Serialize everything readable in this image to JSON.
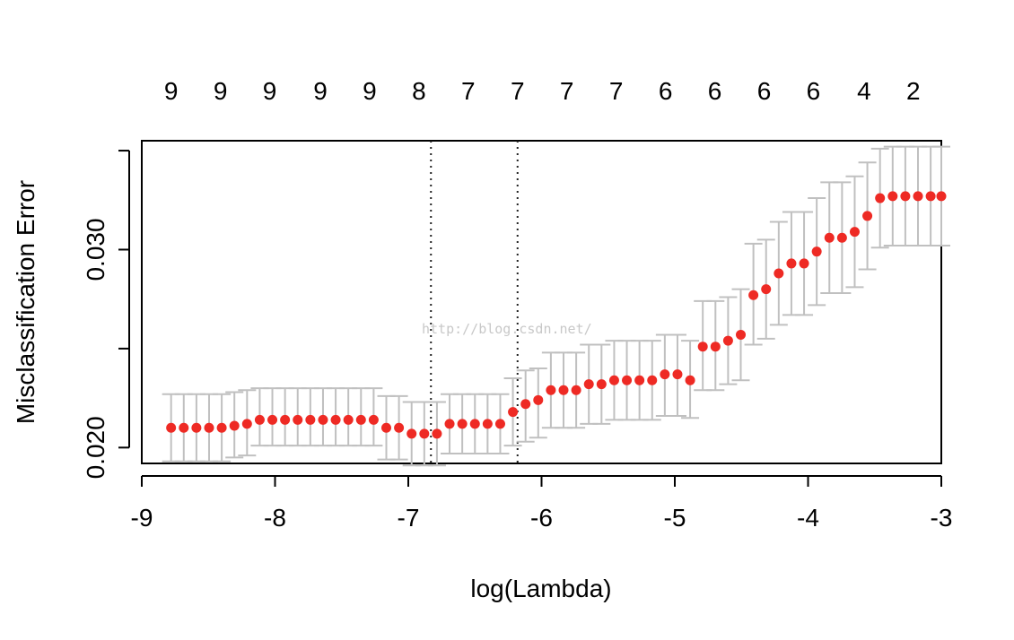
{
  "watermark": "http://blog.csdn.net/",
  "chart_data": {
    "type": "scatter",
    "title": "",
    "xlabel": "log(Lambda)",
    "ylabel": "Misclassification Error",
    "xlim": [
      -9,
      -3
    ],
    "ylim": [
      0.0192,
      0.0355
    ],
    "x_ticks": [
      -9,
      -8,
      -7,
      -6,
      -5,
      -4,
      -3
    ],
    "x_tick_labels": [
      "-9",
      "-8",
      "-7",
      "-6",
      "-5",
      "-4",
      "-3"
    ],
    "y_ticks": [
      0.02,
      0.025,
      0.03,
      0.035
    ],
    "y_tick_labels": [
      "0.020",
      "",
      "0.030",
      ""
    ],
    "top_axis": {
      "positions": [
        -8.78,
        -8.41,
        -8.04,
        -7.66,
        -7.29,
        -6.92,
        -6.55,
        -6.18,
        -5.81,
        -5.44,
        -5.07,
        -4.7,
        -4.33,
        -3.96,
        -3.58,
        -3.21
      ],
      "labels": [
        "9",
        "9",
        "9",
        "9",
        "9",
        "8",
        "7",
        "7",
        "7",
        "7",
        "6",
        "6",
        "6",
        "6",
        "4",
        "2"
      ]
    },
    "vlines": [
      -6.83,
      -6.18
    ],
    "point_color": "#ee2a24",
    "errorbar_color": "#c0c0c0",
    "series": [
      {
        "x": [
          -8.78,
          -8.685,
          -8.59,
          -8.495,
          -8.4,
          -8.305,
          -8.21,
          -8.115,
          -8.02,
          -7.925,
          -7.83,
          -7.735,
          -7.64,
          -7.545,
          -7.45,
          -7.355,
          -7.26,
          -7.165,
          -7.07,
          -6.975,
          -6.88,
          -6.785,
          -6.69,
          -6.595,
          -6.5,
          -6.405,
          -6.31,
          -6.215,
          -6.12,
          -6.025,
          -5.93,
          -5.835,
          -5.74,
          -5.645,
          -5.55,
          -5.455,
          -5.36,
          -5.265,
          -5.17,
          -5.075,
          -4.98,
          -4.885,
          -4.79,
          -4.695,
          -4.6,
          -4.505,
          -4.41,
          -4.315,
          -4.22,
          -4.125,
          -4.03,
          -3.935,
          -3.84,
          -3.745,
          -3.65,
          -3.555,
          -3.46,
          -3.365,
          -3.27,
          -3.175,
          -3.08,
          -3.0
        ],
        "y": [
          0.021,
          0.021,
          0.021,
          0.021,
          0.021,
          0.0211,
          0.0212,
          0.0214,
          0.0214,
          0.0214,
          0.0214,
          0.0214,
          0.0214,
          0.0214,
          0.0214,
          0.0214,
          0.0214,
          0.021,
          0.021,
          0.0207,
          0.0207,
          0.0207,
          0.0212,
          0.0212,
          0.0212,
          0.0212,
          0.0212,
          0.0218,
          0.0222,
          0.0224,
          0.0229,
          0.0229,
          0.0229,
          0.0232,
          0.0232,
          0.0234,
          0.0234,
          0.0234,
          0.0234,
          0.0237,
          0.0237,
          0.0234,
          0.0251,
          0.0251,
          0.0254,
          0.0257,
          0.0277,
          0.028,
          0.0288,
          0.0293,
          0.0293,
          0.0299,
          0.0306,
          0.0306,
          0.0309,
          0.0317,
          0.0326,
          0.0327,
          0.0327,
          0.0327,
          0.0327,
          0.0327
        ],
        "lower": [
          0.0193,
          0.0193,
          0.0193,
          0.0193,
          0.0193,
          0.0195,
          0.0196,
          0.0201,
          0.0201,
          0.0201,
          0.0201,
          0.0201,
          0.0201,
          0.0201,
          0.0201,
          0.0201,
          0.0201,
          0.0194,
          0.0194,
          0.0191,
          0.0191,
          0.0191,
          0.0197,
          0.0197,
          0.0197,
          0.0197,
          0.0197,
          0.0201,
          0.0203,
          0.0205,
          0.021,
          0.021,
          0.021,
          0.0212,
          0.0212,
          0.0214,
          0.0214,
          0.0214,
          0.0214,
          0.0216,
          0.0216,
          0.0215,
          0.0229,
          0.0229,
          0.0232,
          0.0234,
          0.0252,
          0.0255,
          0.0262,
          0.0267,
          0.0267,
          0.0272,
          0.0278,
          0.0278,
          0.0281,
          0.029,
          0.0301,
          0.0302,
          0.0302,
          0.0302,
          0.0302,
          0.0302
        ],
        "upper": [
          0.0227,
          0.0227,
          0.0227,
          0.0227,
          0.0227,
          0.0228,
          0.0229,
          0.023,
          0.023,
          0.023,
          0.023,
          0.023,
          0.023,
          0.023,
          0.023,
          0.023,
          0.023,
          0.0226,
          0.0226,
          0.0223,
          0.0223,
          0.0223,
          0.0227,
          0.0227,
          0.0227,
          0.0227,
          0.0227,
          0.0235,
          0.0239,
          0.024,
          0.0248,
          0.0248,
          0.0248,
          0.0252,
          0.0252,
          0.0254,
          0.0254,
          0.0254,
          0.0254,
          0.0257,
          0.0257,
          0.0254,
          0.0274,
          0.0274,
          0.0276,
          0.028,
          0.0303,
          0.0305,
          0.0314,
          0.0319,
          0.0319,
          0.0326,
          0.0334,
          0.0334,
          0.0337,
          0.0344,
          0.0351,
          0.0352,
          0.0352,
          0.0352,
          0.0352,
          0.0352
        ]
      }
    ]
  }
}
